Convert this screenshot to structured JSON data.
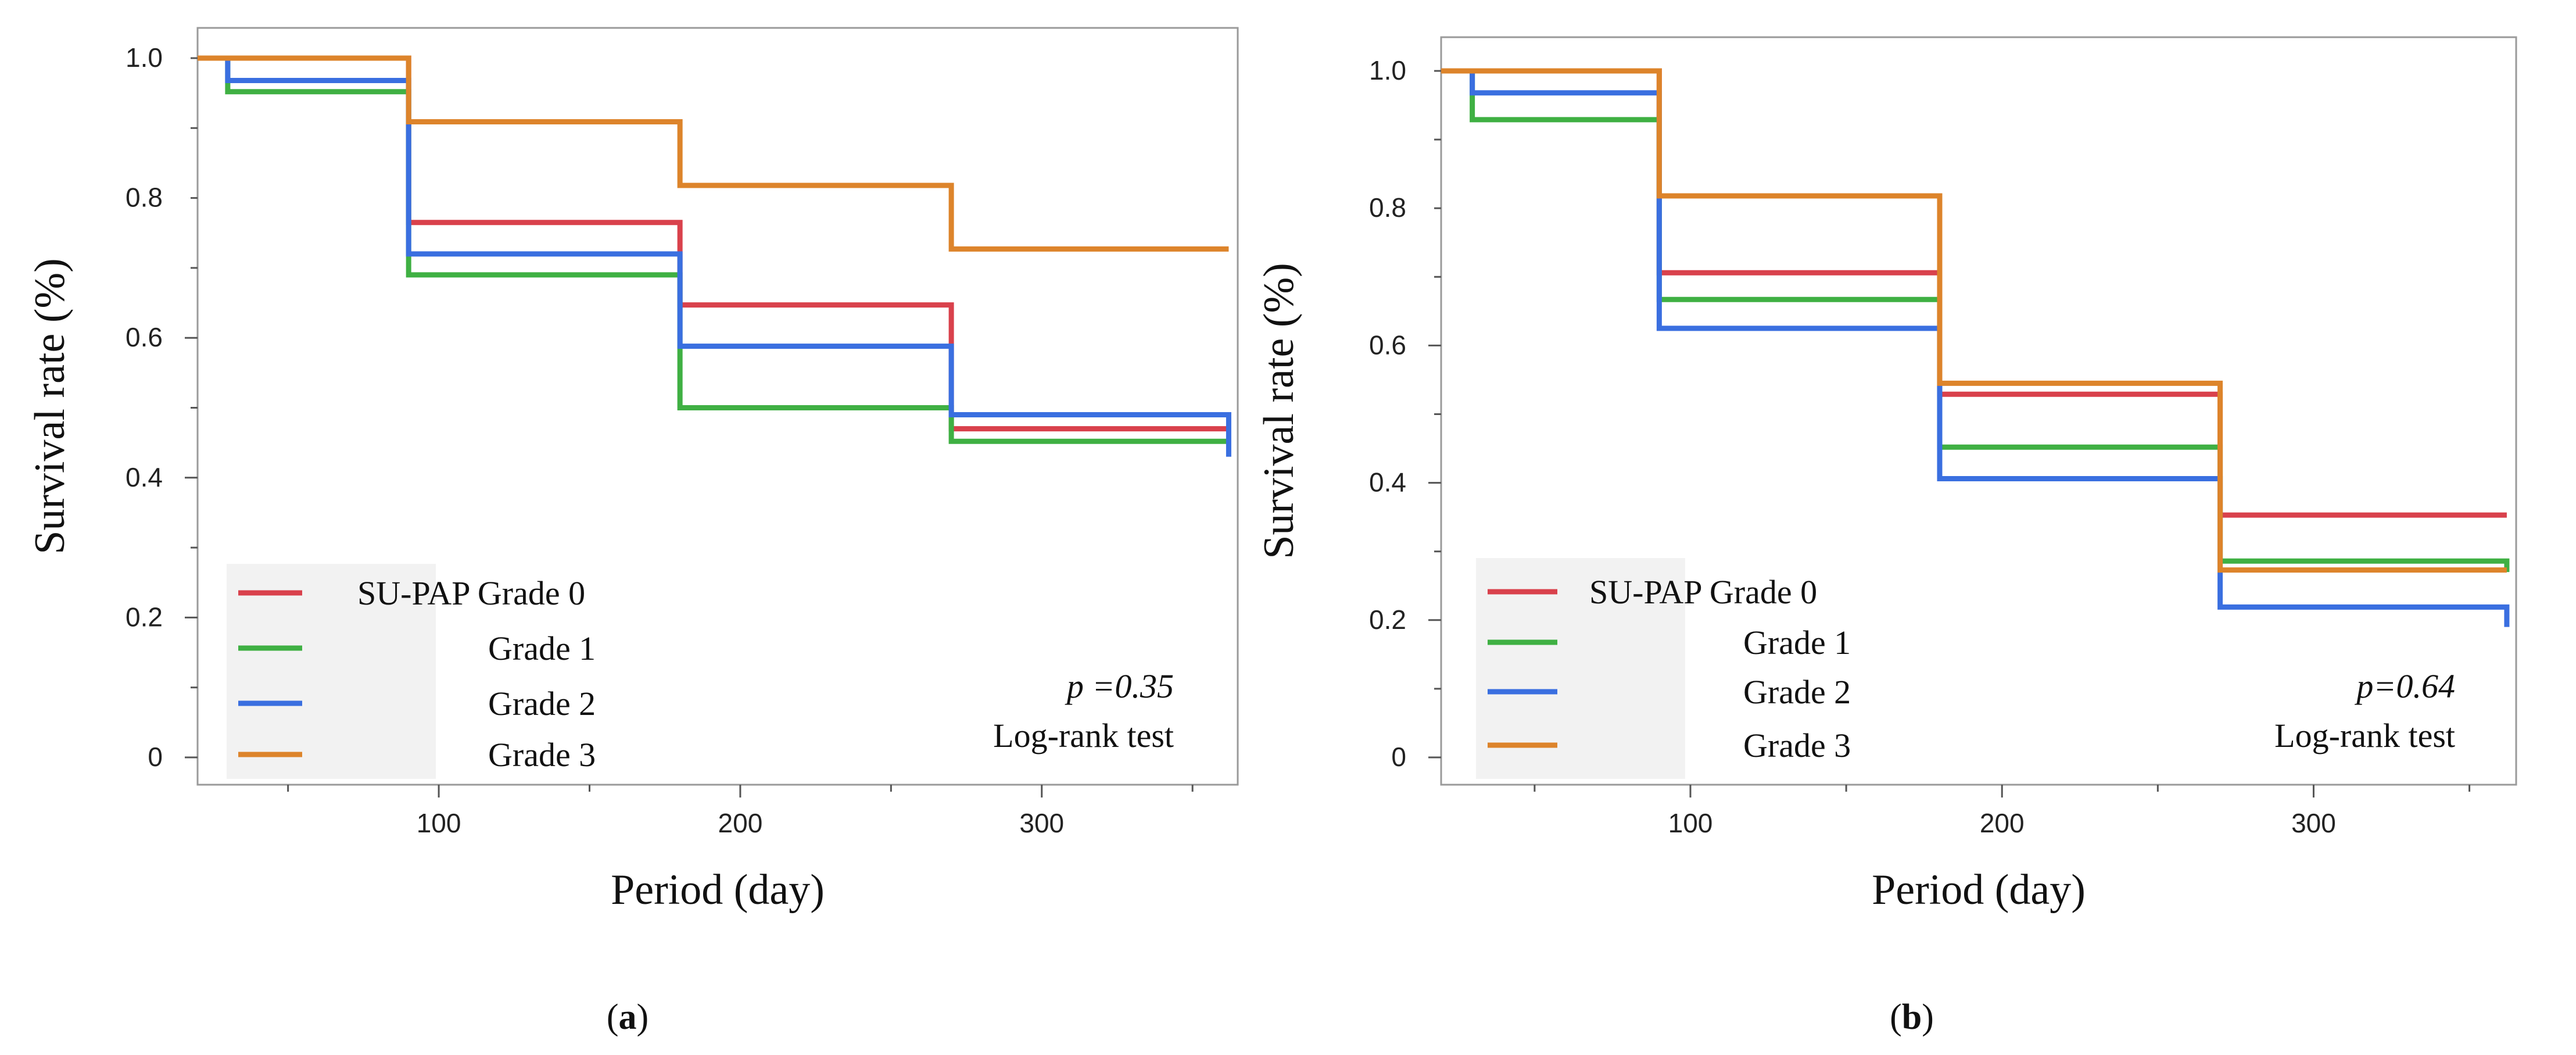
{
  "chart_data": [
    {
      "type": "line",
      "step": true,
      "panel_label": "(a)",
      "xlabel": "Period (day)",
      "ylabel": "Survival rate (%)",
      "xlim": [
        20,
        365
      ],
      "ylim": [
        0,
        1.0
      ],
      "x_ticks": [
        100,
        200,
        300
      ],
      "y_ticks": [
        0,
        0.2,
        0.4,
        0.6,
        0.8,
        1.0
      ],
      "y_tick_labels": [
        "0",
        "0.2",
        "0.4",
        "0.6",
        "0.8",
        "1.0"
      ],
      "legend": {
        "placement": "bottom-left",
        "entries": [
          "SU-PAP Grade 0",
          "Grade 1",
          "Grade 2",
          "Grade 3"
        ]
      },
      "annotations": [
        "p =0.35",
        "Log-rank test"
      ],
      "series": [
        {
          "name": "SU-PAP Grade 0",
          "color": "#d9414c",
          "x": [
            20,
            90,
            180,
            270,
            362
          ],
          "y": [
            1.0,
            0.765,
            0.647,
            0.47,
            0.47
          ]
        },
        {
          "name": "Grade 1",
          "color": "#3fb043",
          "x": [
            20,
            30,
            90,
            180,
            270,
            362
          ],
          "y": [
            1.0,
            0.952,
            0.69,
            0.5,
            0.452,
            0.452
          ]
        },
        {
          "name": "Grade 2",
          "color": "#3a6fe0",
          "x": [
            20,
            30,
            90,
            180,
            270,
            362
          ],
          "y": [
            1.0,
            0.968,
            0.72,
            0.588,
            0.49,
            0.43
          ]
        },
        {
          "name": "Grade 3",
          "color": "#dd842b",
          "x": [
            20,
            90,
            180,
            270,
            362
          ],
          "y": [
            1.0,
            0.909,
            0.818,
            0.727,
            0.727
          ]
        }
      ]
    },
    {
      "type": "line",
      "step": true,
      "panel_label": "(b)",
      "xlabel": "Period (day)",
      "ylabel": "Survival rate (%)",
      "xlim": [
        20,
        365
      ],
      "ylim": [
        0,
        1.0
      ],
      "x_ticks": [
        100,
        200,
        300
      ],
      "y_ticks": [
        0,
        0.2,
        0.4,
        0.6,
        0.8,
        1.0
      ],
      "y_tick_labels": [
        "0",
        "0.2",
        "0.4",
        "0.6",
        "0.8",
        "1.0"
      ],
      "legend": {
        "placement": "bottom-left",
        "entries": [
          "SU-PAP Grade 0",
          "Grade 1",
          "Grade 2",
          "Grade 3"
        ]
      },
      "annotations": [
        "p=0.64",
        "Log-rank test"
      ],
      "series": [
        {
          "name": "SU-PAP Grade 0",
          "color": "#d9414c",
          "x": [
            20,
            90,
            180,
            270,
            362
          ],
          "y": [
            1.0,
            0.706,
            0.529,
            0.353,
            0.353
          ]
        },
        {
          "name": "Grade 1",
          "color": "#3fb043",
          "x": [
            20,
            30,
            90,
            180,
            270,
            362
          ],
          "y": [
            1.0,
            0.929,
            0.667,
            0.452,
            0.286,
            0.27
          ]
        },
        {
          "name": "Grade 2",
          "color": "#3a6fe0",
          "x": [
            20,
            30,
            90,
            180,
            270,
            362
          ],
          "y": [
            1.0,
            0.968,
            0.625,
            0.406,
            0.219,
            0.19
          ]
        },
        {
          "name": "Grade 3",
          "color": "#dd842b",
          "x": [
            20,
            90,
            180,
            270,
            362
          ],
          "y": [
            1.0,
            0.818,
            0.545,
            0.273,
            0.273
          ]
        }
      ]
    }
  ]
}
